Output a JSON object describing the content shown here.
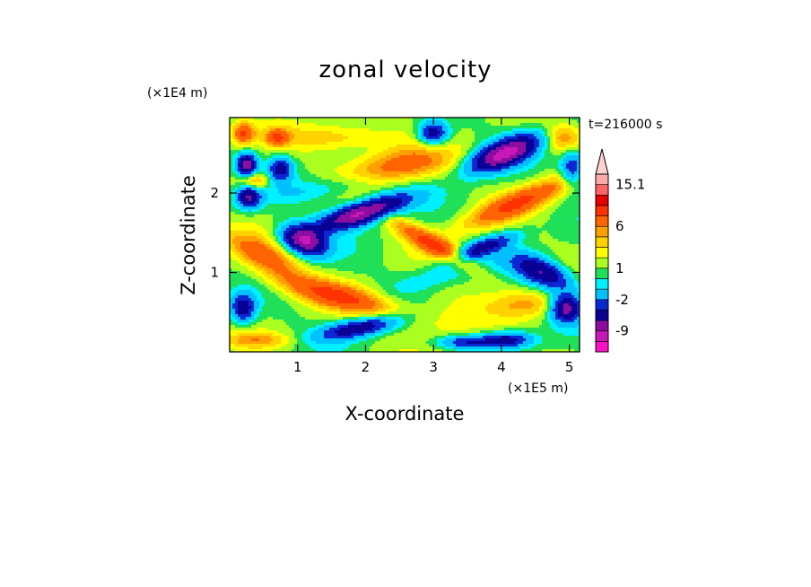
{
  "chart_data": {
    "type": "heatmap",
    "title": "zonal velocity",
    "xlabel": "X-coordinate",
    "ylabel": "Z-coordinate",
    "x_scale_label": "(×1E5 m)",
    "y_scale_label": "(×1E4 m)",
    "time_label": "t=216000 s",
    "xlim": [
      0,
      5.15
    ],
    "ylim": [
      0,
      2.95
    ],
    "x_ticks": [
      "1",
      "2",
      "3",
      "4",
      "5"
    ],
    "x_tick_values": [
      1,
      2,
      3,
      4,
      5
    ],
    "y_ticks": [
      "1",
      "2"
    ],
    "y_tick_values": [
      1,
      2
    ],
    "colorbar": {
      "labels": [
        "15.1",
        "6",
        "1",
        "-2",
        "-9"
      ],
      "label_values": [
        15.1,
        6,
        1,
        -2,
        -9
      ],
      "extend": "max",
      "levels": [
        -15,
        -12,
        -9,
        -6,
        -4,
        -2,
        -1,
        0,
        1,
        2,
        3,
        4,
        6,
        8,
        10,
        12.5,
        15.1
      ],
      "colors": [
        "#ff10c8",
        "#c818b8",
        "#8c0ea0",
        "#0a0096",
        "#0a28d2",
        "#00c0ff",
        "#00f0ff",
        "#20e05a",
        "#aaff20",
        "#ffff00",
        "#ffd200",
        "#ffa000",
        "#ff6400",
        "#ff3200",
        "#e60000",
        "#ff6464",
        "#ffaaaa",
        "#ffd2d2"
      ]
    },
    "features": [
      {
        "x": 1.95,
        "z": 1.75,
        "sx": 0.45,
        "sz": 0.1,
        "u": -13,
        "tilt": 0.25
      },
      {
        "x": 1.1,
        "z": 1.4,
        "sx": 0.22,
        "sz": 0.12,
        "u": -12,
        "tilt": -0.2
      },
      {
        "x": 4.05,
        "z": 2.5,
        "sx": 0.35,
        "sz": 0.12,
        "u": -13,
        "tilt": 0.3
      },
      {
        "x": 3.0,
        "z": 2.75,
        "sx": 0.15,
        "sz": 0.1,
        "u": -8,
        "tilt": 0
      },
      {
        "x": 0.25,
        "z": 2.35,
        "sx": 0.1,
        "sz": 0.1,
        "u": -11,
        "tilt": 0
      },
      {
        "x": 0.28,
        "z": 1.95,
        "sx": 0.12,
        "sz": 0.1,
        "u": -9,
        "tilt": 0
      },
      {
        "x": 0.75,
        "z": 2.3,
        "sx": 0.12,
        "sz": 0.1,
        "u": -7,
        "tilt": 0
      },
      {
        "x": 4.6,
        "z": 1.0,
        "sx": 0.3,
        "sz": 0.12,
        "u": -9,
        "tilt": -0.3
      },
      {
        "x": 3.7,
        "z": 1.3,
        "sx": 0.35,
        "sz": 0.08,
        "u": -7,
        "tilt": 0.3
      },
      {
        "x": 0.2,
        "z": 0.55,
        "sx": 0.12,
        "sz": 0.12,
        "u": -8,
        "tilt": 0
      },
      {
        "x": 4.95,
        "z": 0.55,
        "sx": 0.15,
        "sz": 0.12,
        "u": -10,
        "tilt": 0
      },
      {
        "x": 1.9,
        "z": 0.3,
        "sx": 0.4,
        "sz": 0.08,
        "u": -8,
        "tilt": 0.15
      },
      {
        "x": 3.5,
        "z": 0.12,
        "sx": 0.3,
        "sz": 0.06,
        "u": -6,
        "tilt": 0
      },
      {
        "x": 4.1,
        "z": 0.15,
        "sx": 0.25,
        "sz": 0.07,
        "u": -7,
        "tilt": 0
      },
      {
        "x": 5.05,
        "z": 2.3,
        "sx": 0.12,
        "sz": 0.15,
        "u": -7,
        "tilt": 0
      },
      {
        "x": 2.5,
        "z": 2.35,
        "sx": 0.5,
        "sz": 0.15,
        "u": 5,
        "tilt": 0.1
      },
      {
        "x": 1.65,
        "z": 2.7,
        "sx": 0.6,
        "sz": 0.12,
        "u": 3,
        "tilt": 0
      },
      {
        "x": 3.0,
        "z": 1.35,
        "sx": 0.45,
        "sz": 0.1,
        "u": 6,
        "tilt": -0.45
      },
      {
        "x": 1.6,
        "z": 0.7,
        "sx": 0.6,
        "sz": 0.12,
        "u": 6,
        "tilt": -0.2
      },
      {
        "x": 0.5,
        "z": 1.2,
        "sx": 0.4,
        "sz": 0.15,
        "u": 5,
        "tilt": -0.4
      },
      {
        "x": 4.3,
        "z": 1.9,
        "sx": 0.6,
        "sz": 0.12,
        "u": 6,
        "tilt": 0.35
      },
      {
        "x": 0.35,
        "z": 2.15,
        "sx": 0.15,
        "sz": 0.08,
        "u": 5,
        "tilt": 0
      },
      {
        "x": 0.2,
        "z": 2.75,
        "sx": 0.12,
        "sz": 0.1,
        "u": 6,
        "tilt": 0
      },
      {
        "x": 0.7,
        "z": 2.7,
        "sx": 0.12,
        "sz": 0.08,
        "u": 5,
        "tilt": 0
      },
      {
        "x": 4.9,
        "z": 2.7,
        "sx": 0.2,
        "sz": 0.12,
        "u": 4,
        "tilt": 0
      },
      {
        "x": 4.4,
        "z": 0.6,
        "sx": 0.35,
        "sz": 0.12,
        "u": 3,
        "tilt": 0
      },
      {
        "x": 0.4,
        "z": 0.15,
        "sx": 0.35,
        "sz": 0.07,
        "u": 3,
        "tilt": 0
      },
      {
        "x": 3.2,
        "z": 0.45,
        "sx": 0.4,
        "sz": 0.25,
        "u": 1.5,
        "tilt": 0
      },
      {
        "x": 1.4,
        "z": 2.05,
        "sx": 0.6,
        "sz": 0.1,
        "u": -2,
        "tilt": 0.1
      },
      {
        "x": 3.1,
        "z": 0.95,
        "sx": 0.5,
        "sz": 0.1,
        "u": -2,
        "tilt": 0.2
      }
    ]
  }
}
